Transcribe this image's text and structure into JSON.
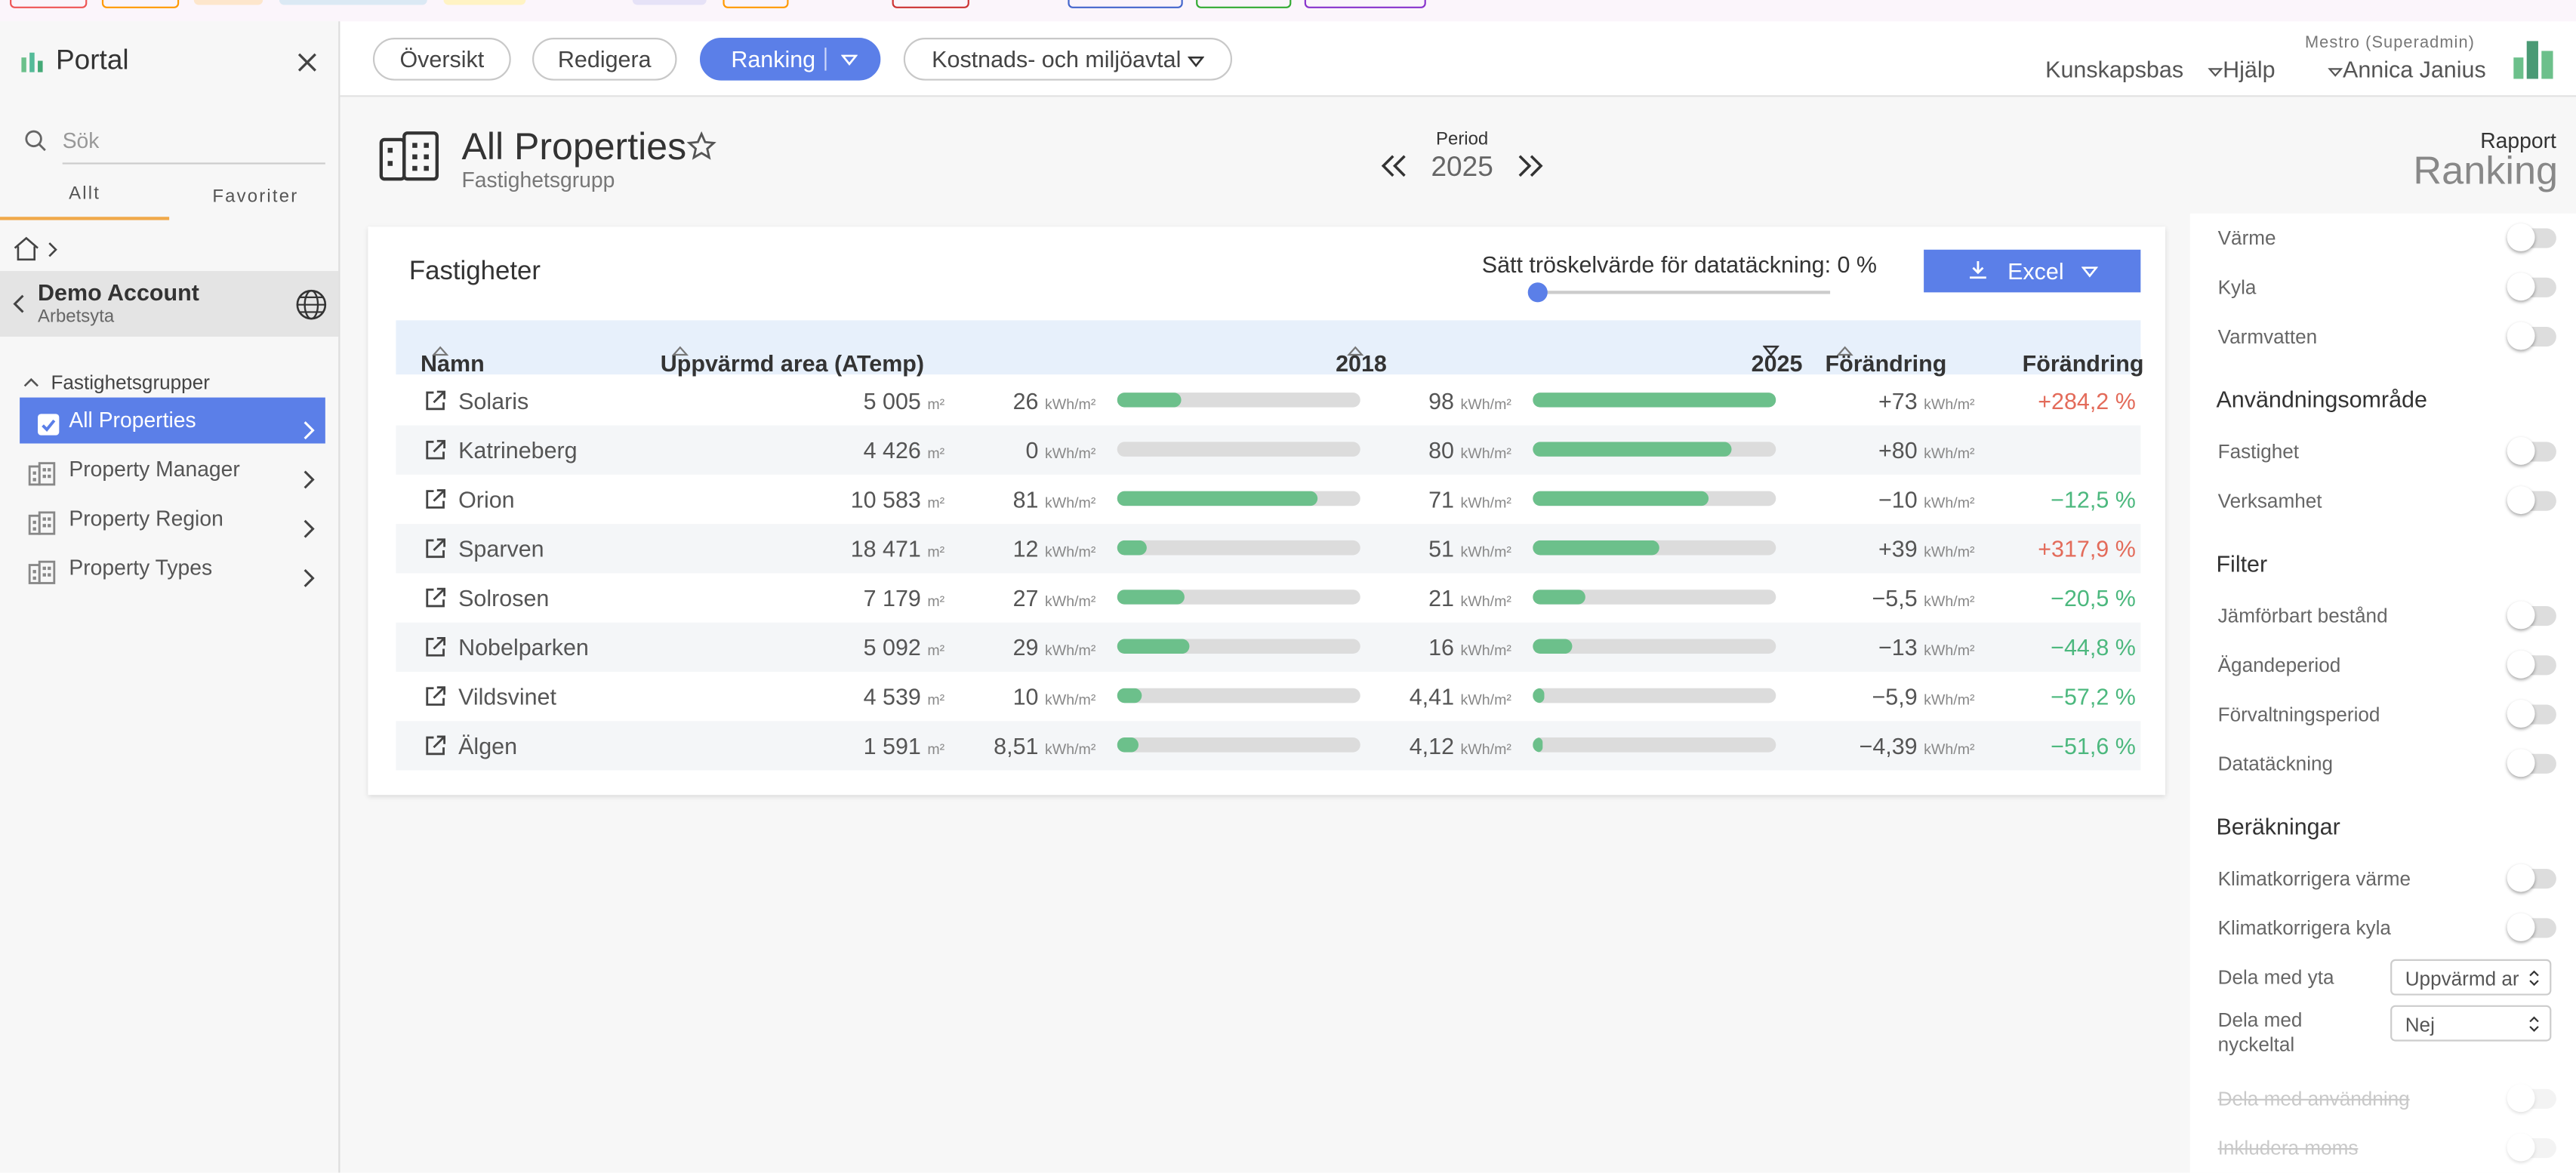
{
  "sidebar": {
    "title": "Portal",
    "search_placeholder": "Sök",
    "tabs": [
      "Allt",
      "Favoriter"
    ],
    "account": {
      "name": "Demo Account",
      "subtitle": "Arbetsyta"
    },
    "group_header": "Fastighetsgrupper",
    "items": [
      "All Properties",
      "Property Manager",
      "Property Region",
      "Property Types"
    ]
  },
  "topbar": {
    "tabs": [
      "Översikt",
      "Redigera",
      "Ranking",
      "Kostnads- och miljöavtal"
    ],
    "links": [
      "Kunskapsbas",
      "Hjälp"
    ],
    "user_role": "Mestro (Superadmin)",
    "user_name": "Annica Janius"
  },
  "header": {
    "title": "All Properties",
    "subtitle": "Fastighetsgrupp",
    "period_label": "Period",
    "period": "2025",
    "report_label": "Rapport",
    "report": "Ranking"
  },
  "table": {
    "title": "Fastigheter",
    "threshold": "Sätt tröskelvärde för datatäckning: 0 %",
    "excel": "Excel",
    "columns": [
      "Namn",
      "Uppvärmd area (ATemp)",
      "2018",
      "2025",
      "Förändring",
      "Förändring"
    ],
    "area_unit": "m²",
    "energy_unit": "kWh/m²",
    "rows": [
      {
        "name": "Solaris",
        "area": "5 005",
        "v2018": {
          "value": 26,
          "label": "26"
        },
        "v2025": {
          "value": 98,
          "label": "98"
        },
        "change": "+73",
        "change_pct": "+284,2 %"
      },
      {
        "name": "Katrineberg",
        "area": "4 426",
        "v2018": {
          "value": 0,
          "label": "0"
        },
        "v2025": {
          "value": 80,
          "label": "80"
        },
        "change": "+80"
      },
      {
        "name": "Orion",
        "area": "10 583",
        "v2018": {
          "value": 81,
          "label": "81"
        },
        "v2025": {
          "value": 71,
          "label": "71"
        },
        "change": "−10",
        "change_pct": "−12,5 %"
      },
      {
        "name": "Sparven",
        "area": "18 471",
        "v2018": {
          "value": 12,
          "label": "12"
        },
        "v2025": {
          "value": 51,
          "label": "51"
        },
        "change": "+39",
        "change_pct": "+317,9 %"
      },
      {
        "name": "Solrosen",
        "area": "7 179",
        "v2018": {
          "value": 27,
          "label": "27"
        },
        "v2025": {
          "value": 21,
          "label": "21"
        },
        "change": "−5,5",
        "change_pct": "−20,5 %"
      },
      {
        "name": "Nobelparken",
        "area": "5 092",
        "v2018": {
          "value": 29,
          "label": "29"
        },
        "v2025": {
          "value": 16,
          "label": "16"
        },
        "change": "−13",
        "change_pct": "−44,8 %"
      },
      {
        "name": "Vildsvinet",
        "area": "4 539",
        "v2018": {
          "value": 10,
          "label": "10"
        },
        "v2025": {
          "value": 4.41,
          "label": "4,41"
        },
        "change": "−5,9",
        "change_pct": "−57,2 %"
      },
      {
        "name": "Älgen",
        "area": "1 591",
        "v2018": {
          "value": 8.51,
          "label": "8,51"
        },
        "v2025": {
          "value": 4.12,
          "label": "4,12"
        },
        "change": "−4,39",
        "change_pct": "−51,6 %"
      }
    ]
  },
  "panel": {
    "sections": [
      {
        "items": [
          "Värme",
          "Kyla",
          "Varmvatten"
        ]
      },
      {
        "title": "Användningsområde",
        "items": [
          "Fastighet",
          "Verksamhet"
        ]
      },
      {
        "title": "Filter",
        "items": [
          "Jämförbart bestånd",
          "Ägandeperiod",
          "Förvaltningsperiod",
          "Datatäckning"
        ]
      },
      {
        "title": "Beräkningar",
        "items": [
          "Klimatkorrigera värme",
          "Klimatkorrigera kyla"
        ]
      }
    ],
    "selects": [
      {
        "label": "Dela med yta",
        "value": "Uppvärmd ar"
      },
      {
        "label": "Dela med nyckeltal",
        "value": "Nej"
      }
    ],
    "disabled": [
      "Dela med användning",
      "Inkludera moms"
    ]
  }
}
